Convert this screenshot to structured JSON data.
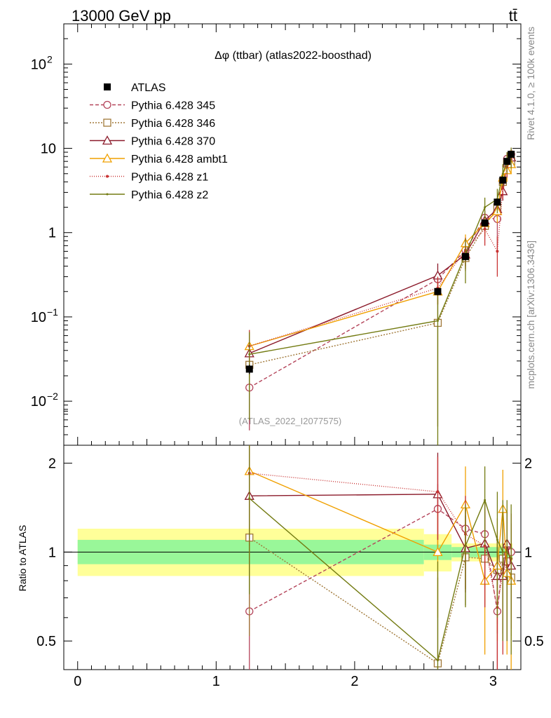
{
  "header": {
    "energy_label": "13000 GeV pp",
    "process_label": "tt̄"
  },
  "chart_data": {
    "type": "line",
    "title": "Δφ (ttbar) (atlas2022-boosthad)",
    "analysis_tag": "(ATLAS_2022_I2077575)",
    "side_label_top": "Rivet 4.1.0, ≥ 100k events",
    "side_label_bottom": "mcplots.cern.ch [arXiv:1306.3436]",
    "x_ticks": [
      "0",
      "1",
      "2",
      "3"
    ],
    "xlim": [
      -0.1,
      3.2
    ],
    "main_panel": {
      "yscale": "log",
      "ylim": [
        0.003,
        300
      ],
      "y_ticks": [
        {
          "value": 0.01,
          "label": "10",
          "exp": "−2"
        },
        {
          "value": 0.1,
          "label": "10",
          "exp": "−1"
        },
        {
          "value": 1,
          "label": "1",
          "exp": ""
        },
        {
          "value": 10,
          "label": "10",
          "exp": ""
        },
        {
          "value": 100,
          "label": "10",
          "exp": "2"
        }
      ]
    },
    "ratio_panel": {
      "ylabel": "Ratio to ATLAS",
      "ylim": [
        0.4,
        2.3
      ],
      "y_ticks": [
        "0.5",
        "1",
        "2"
      ],
      "band_inner_color": "#99f799",
      "band_outer_color": "#ffff99",
      "bands": [
        {
          "x0": 0.0,
          "x1": 2.5,
          "inner": [
            0.91,
            1.1
          ],
          "outer": [
            0.83,
            1.2
          ]
        },
        {
          "x0": 2.5,
          "x1": 2.7,
          "inner": [
            0.94,
            1.06
          ],
          "outer": [
            0.86,
            1.15
          ]
        },
        {
          "x0": 2.7,
          "x1": 3.14,
          "inner": [
            0.96,
            1.04
          ],
          "outer": [
            0.93,
            1.07
          ]
        }
      ]
    },
    "data": {
      "name": "ATLAS",
      "color": "#000000",
      "x": [
        1.24,
        2.6,
        2.8,
        2.94,
        3.03,
        3.07,
        3.1,
        3.13
      ],
      "y": [
        0.024,
        0.2,
        0.52,
        1.3,
        2.3,
        4.2,
        7.0,
        8.5
      ],
      "yerr": [
        0.003,
        0.02,
        0.05,
        0.12,
        0.2,
        0.35,
        0.6,
        0.8
      ]
    },
    "series": [
      {
        "name": "Pythia 6.428 345",
        "color": "#b4445a",
        "dash": "5,3",
        "marker": "circle",
        "y": [
          0.0145,
          0.28,
          0.62,
          1.5,
          1.45,
          4.0,
          7.5,
          8.5
        ],
        "yerr": [
          0.01,
          0.06,
          0.12,
          0.3,
          0.8,
          1.0,
          1.5,
          1.7
        ],
        "ratio": [
          0.63,
          1.4,
          1.2,
          1.15,
          0.63,
          0.95,
          1.05,
          1.0
        ],
        "ratio_err": [
          0.6,
          0.3,
          0.2,
          0.25,
          0.3,
          0.25,
          0.25,
          0.25
        ]
      },
      {
        "name": "Pythia 6.428 346",
        "color": "#a07838",
        "dash": "2,2",
        "marker": "square",
        "y": [
          0.027,
          0.085,
          0.5,
          1.2,
          2.0,
          4.0,
          6.5,
          7.0
        ],
        "yerr": [
          0.015,
          0.08,
          0.15,
          0.3,
          0.5,
          0.9,
          1.5,
          1.5
        ],
        "ratio": [
          1.12,
          0.42,
          0.96,
          0.95,
          0.87,
          0.95,
          0.93,
          0.82
        ],
        "ratio_err": [
          0.6,
          0.4,
          0.3,
          0.3,
          0.3,
          0.3,
          0.3,
          0.3
        ]
      },
      {
        "name": "Pythia 6.428 370",
        "color": "#8b1a2a",
        "dash": "",
        "marker": "triangle",
        "y": [
          0.037,
          0.31,
          0.55,
          1.4,
          1.9,
          3.1,
          6.8,
          7.8
        ],
        "yerr": [
          0.012,
          0.12,
          0.15,
          0.3,
          0.4,
          0.7,
          1.3,
          1.5
        ],
        "ratio": [
          1.55,
          1.57,
          1.03,
          1.07,
          0.83,
          0.83,
          1.07,
          0.9
        ],
        "ratio_err": [
          0.5,
          0.6,
          0.3,
          0.3,
          0.3,
          0.3,
          0.3,
          0.3
        ]
      },
      {
        "name": "Pythia 6.428 ambt1",
        "color": "#f0a000",
        "dash": "",
        "marker": "triangle",
        "y": [
          0.045,
          0.2,
          0.75,
          1.3,
          1.8,
          4.5,
          5.5,
          6.5
        ],
        "yerr": [
          0.02,
          0.06,
          0.2,
          0.4,
          0.5,
          1.0,
          1.3,
          1.5
        ],
        "ratio": [
          1.88,
          1.0,
          1.45,
          0.8,
          0.9,
          1.4,
          0.85,
          0.8
        ],
        "ratio_err": [
          0.6,
          0.4,
          0.5,
          0.35,
          0.4,
          0.5,
          0.4,
          0.4
        ]
      },
      {
        "name": "Pythia 6.428 z1",
        "color": "#c83232",
        "dash": "1,2",
        "marker": "dot",
        "y": [
          0.045,
          0.22,
          0.62,
          1.1,
          0.6,
          3.5,
          6.0,
          7.5
        ],
        "yerr": [
          0.025,
          0.08,
          0.25,
          0.4,
          0.3,
          1.0,
          1.5,
          1.5
        ],
        "ratio": [
          1.85,
          1.6,
          1.15,
          1.05,
          0.65,
          0.85,
          0.9,
          0.95
        ],
        "ratio_err": [
          0.8,
          0.5,
          0.4,
          0.4,
          0.4,
          0.4,
          0.4,
          0.4
        ]
      },
      {
        "name": "Pythia 6.428 z2",
        "color": "#737b12",
        "dash": "",
        "marker": "smalldot",
        "y": [
          0.036,
          0.09,
          0.55,
          2.0,
          2.5,
          5.0,
          7.0,
          8.0
        ],
        "yerr": [
          0.03,
          0.09,
          0.3,
          0.6,
          0.8,
          1.5,
          2.0,
          2.2
        ],
        "ratio": [
          1.52,
          0.43,
          1.05,
          1.5,
          1.1,
          1.0,
          1.0,
          0.95
        ],
        "ratio_err": [
          0.8,
          0.5,
          0.4,
          0.45,
          0.5,
          0.5,
          0.5,
          0.5
        ]
      }
    ]
  }
}
